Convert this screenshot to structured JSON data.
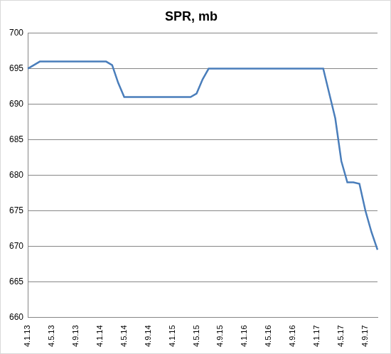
{
  "chart_data": {
    "type": "line",
    "title": "SPR, mb",
    "categories": [
      "4.1.13",
      null,
      null,
      null,
      "4.5.13",
      null,
      null,
      null,
      "4.9.13",
      null,
      null,
      null,
      "4.1.14",
      null,
      null,
      null,
      "4.5.14",
      null,
      null,
      null,
      "4.9.14",
      null,
      null,
      null,
      "4.1.15",
      null,
      null,
      null,
      "4.5.15",
      null,
      null,
      null,
      "4.9.15",
      null,
      null,
      null,
      "4.1.16",
      null,
      null,
      null,
      "4.5.16",
      null,
      null,
      null,
      "4.9.16",
      null,
      null,
      null,
      "4.1.17",
      null,
      null,
      null,
      "4.5.17",
      null,
      null,
      null,
      "4.9.17",
      null,
      null
    ],
    "values": [
      695,
      695.5,
      696,
      696,
      696,
      696,
      696,
      696,
      696,
      696,
      696,
      696,
      696,
      696,
      695.5,
      693,
      691,
      691,
      691,
      691,
      691,
      691,
      691,
      691,
      691,
      691,
      691,
      691,
      691.5,
      693.5,
      695,
      695,
      695,
      695,
      695,
      695,
      695,
      695,
      695,
      695,
      695,
      695,
      695,
      695,
      695,
      695,
      695,
      695,
      695,
      695,
      691.5,
      688,
      682,
      679,
      679,
      678.8,
      675,
      672,
      669.5
    ],
    "color": "#4a7ebb",
    "ylim": [
      660,
      700
    ],
    "yticks": [
      660,
      665,
      670,
      675,
      680,
      685,
      690,
      695,
      700
    ],
    "grid": true
  }
}
